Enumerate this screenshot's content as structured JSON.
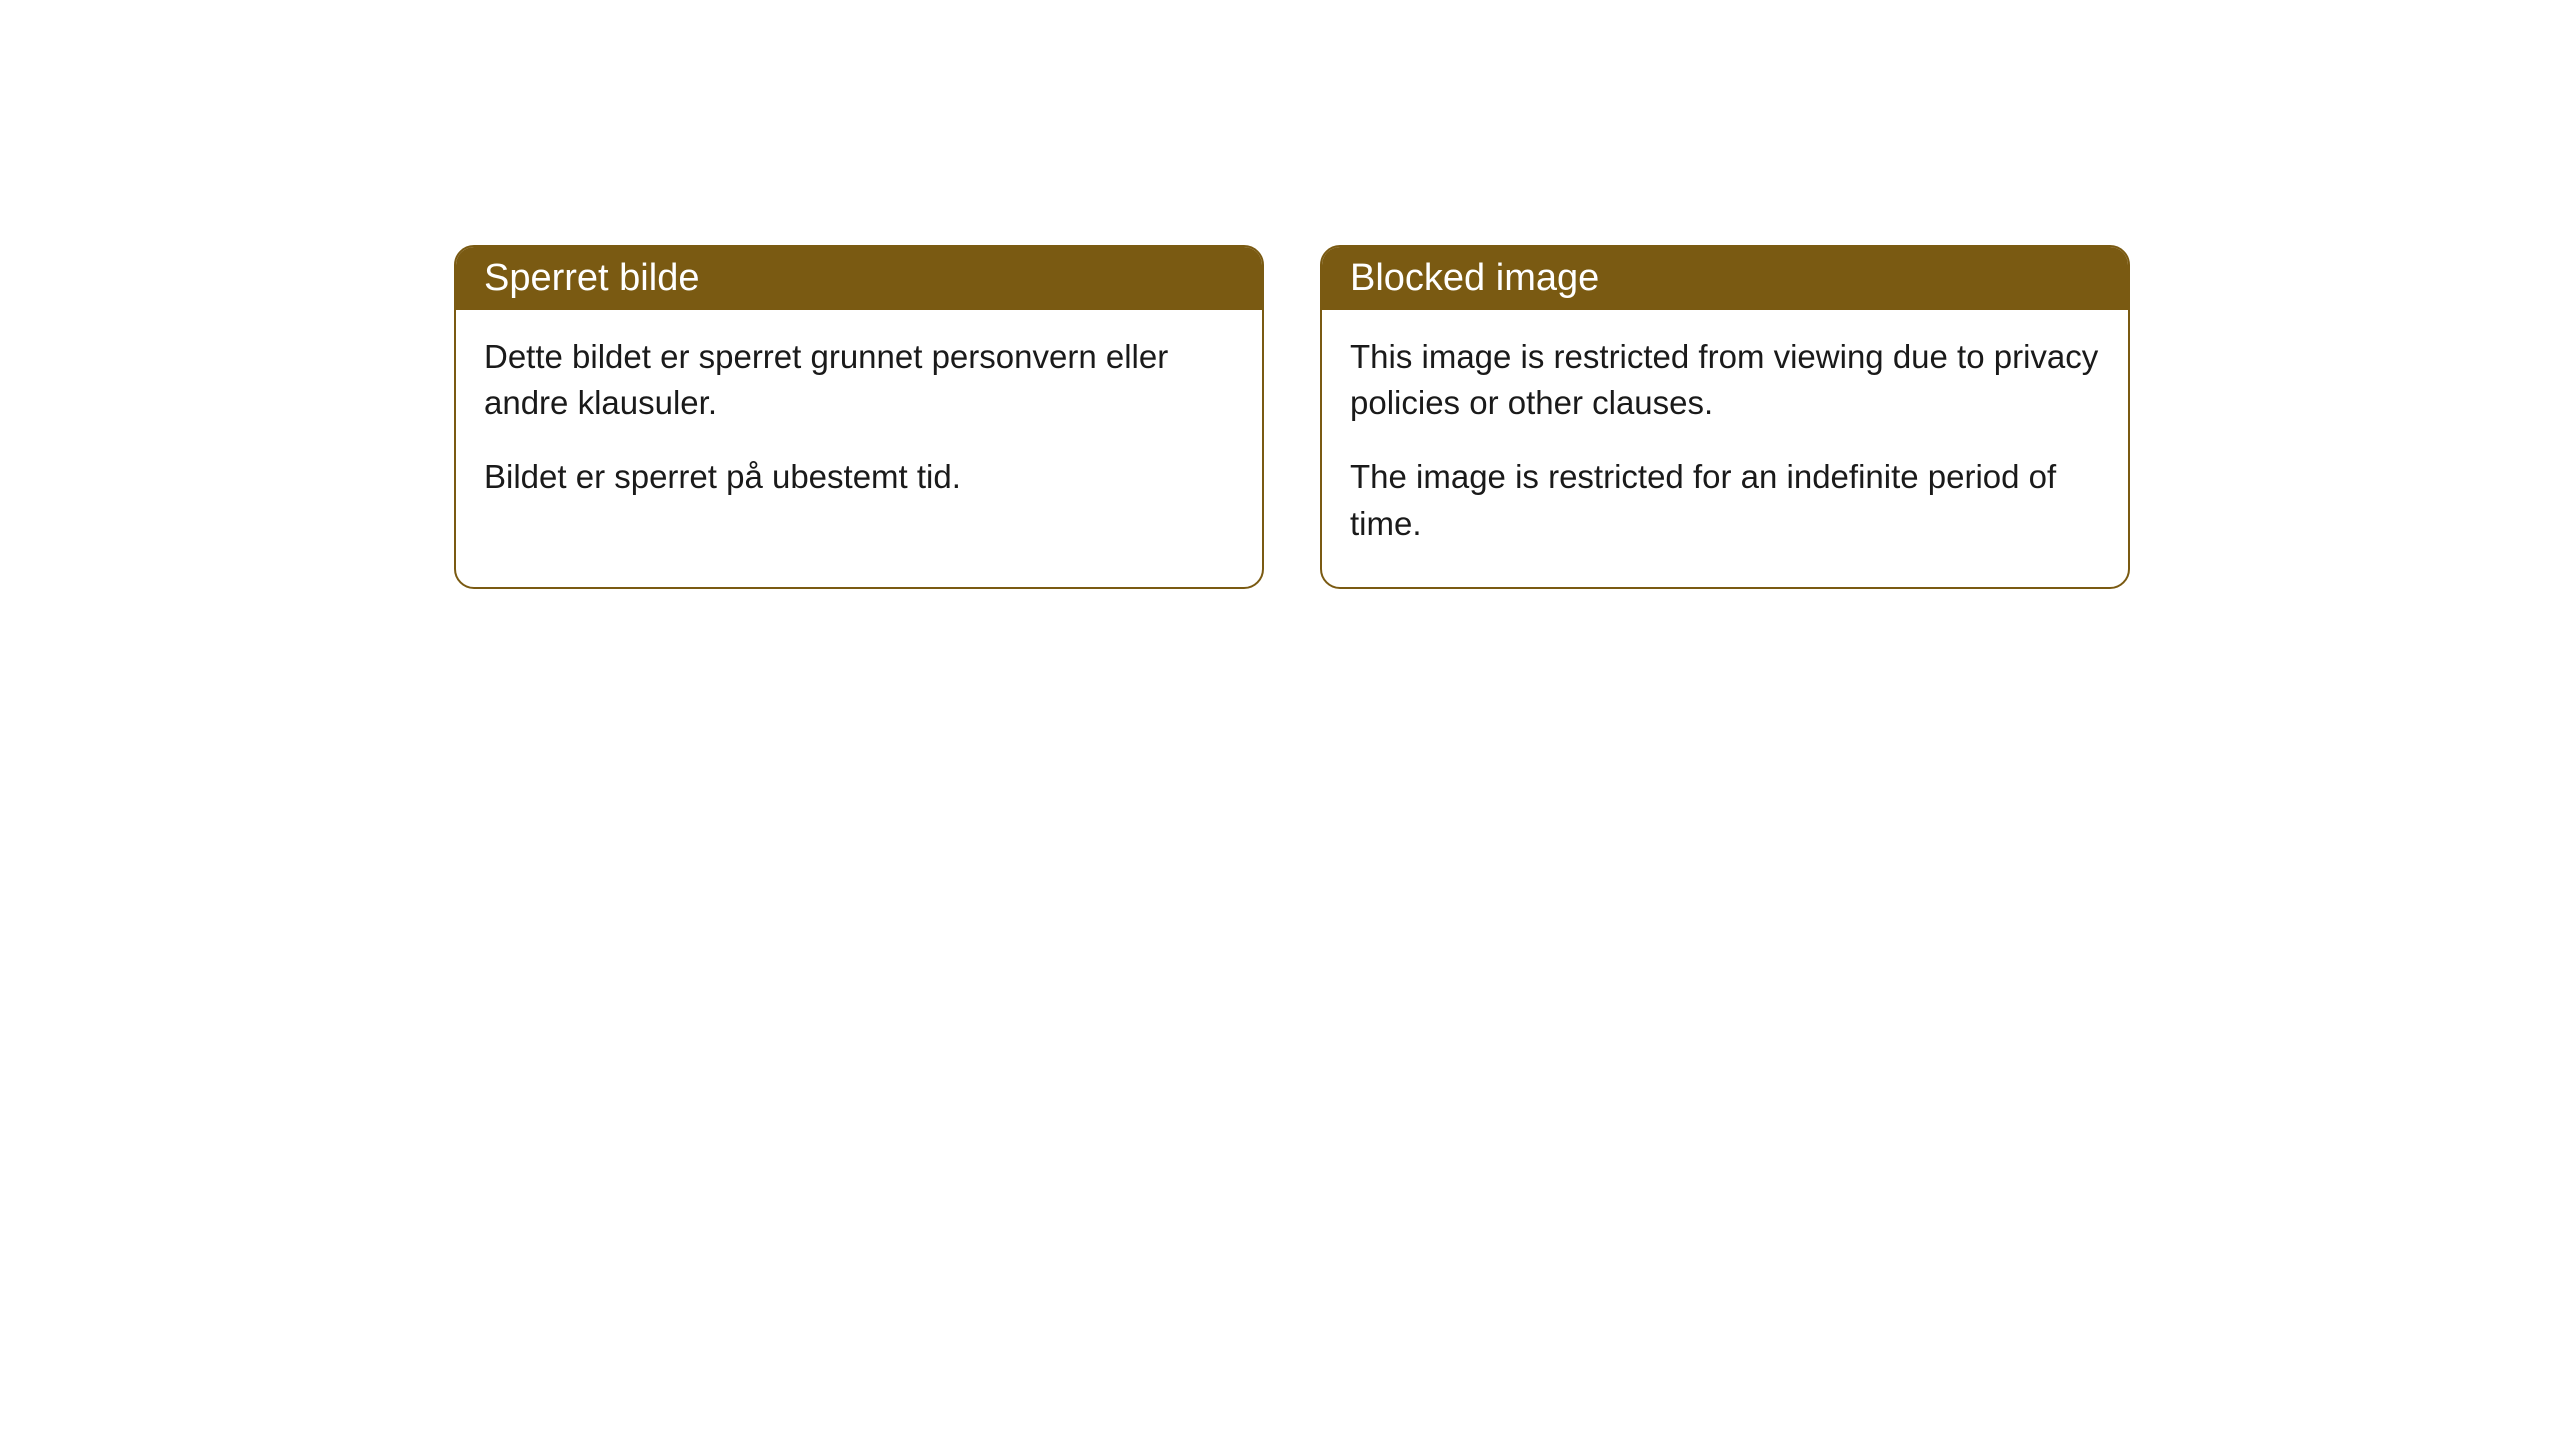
{
  "cards": [
    {
      "title": "Sperret bilde",
      "paragraph1": "Dette bildet er sperret grunnet personvern eller andre klausuler.",
      "paragraph2": "Bildet er sperret på ubestemt tid."
    },
    {
      "title": "Blocked image",
      "paragraph1": "This image is restricted from viewing due to privacy policies or other clauses.",
      "paragraph2": "The image is restricted for an indefinite period of time."
    }
  ],
  "style": {
    "header_bg_color": "#7a5a12",
    "header_text_color": "#ffffff",
    "border_color": "#7a5a12",
    "body_text_color": "#1a1a1a",
    "card_bg_color": "#ffffff",
    "page_bg_color": "#ffffff",
    "border_radius": 20,
    "title_fontsize": 38,
    "body_fontsize": 33
  }
}
